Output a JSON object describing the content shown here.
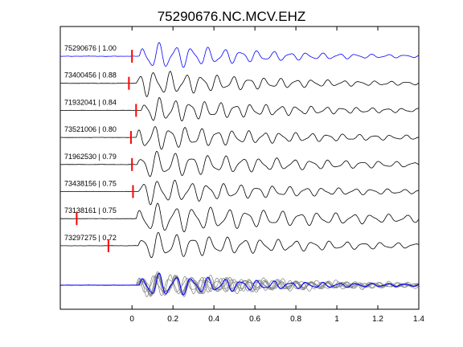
{
  "chart_data": {
    "type": "line",
    "title": "75290676.NC.MCV.EHZ",
    "xlabel": "",
    "ylabel": "",
    "xlim": [
      -0.35,
      1.4
    ],
    "xticks": [
      0,
      0.2,
      0.4,
      0.6,
      0.8,
      1,
      1.2,
      1.4
    ],
    "xtick_labels": [
      "0",
      "0.2",
      "0.4",
      "0.6",
      "0.8",
      "1",
      "1.2",
      "1.4"
    ],
    "legend": "none",
    "grid": false,
    "colors": {
      "reference": "#0000ff",
      "trace": "#000000",
      "stack": "#808080",
      "pick": "#ff0000",
      "axes": "#000000"
    },
    "series": [
      {
        "label": "75290676 | 1.00",
        "event_id": "75290676",
        "correlation": 1.0,
        "pick_time": 0.0,
        "onset": 0.035,
        "freq": 12.5,
        "amp": 0.95,
        "decay": 1.8,
        "reference": true
      },
      {
        "label": "73400456 | 0.88",
        "event_id": "73400456",
        "correlation": 0.88,
        "pick_time": -0.015,
        "onset": 0.02,
        "freq": 13.0,
        "amp": 0.9,
        "decay": 1.6
      },
      {
        "label": "71932041 | 0.84",
        "event_id": "71932041",
        "correlation": 0.84,
        "pick_time": 0.02,
        "onset": 0.045,
        "freq": 13.5,
        "amp": 0.85,
        "decay": 1.5
      },
      {
        "label": "73521006 | 0.80",
        "event_id": "73521006",
        "correlation": 0.8,
        "pick_time": -0.005,
        "onset": 0.02,
        "freq": 13.0,
        "amp": 0.85,
        "decay": 1.4
      },
      {
        "label": "71962530 | 0.79",
        "event_id": "71962530",
        "correlation": 0.79,
        "pick_time": 0.0,
        "onset": 0.025,
        "freq": 12.0,
        "amp": 0.9,
        "decay": 1.3
      },
      {
        "label": "73438156 | 0.75",
        "event_id": "73438156",
        "correlation": 0.75,
        "pick_time": 0.005,
        "onset": 0.03,
        "freq": 12.5,
        "amp": 0.85,
        "decay": 1.4
      },
      {
        "label": "73138161 | 0.75",
        "event_id": "73138161",
        "correlation": 0.75,
        "pick_time": -0.27,
        "onset": 0.02,
        "freq": 11.5,
        "amp": 1.0,
        "decay": 1.1
      },
      {
        "label": "73297275 | 0.72",
        "event_id": "73297275",
        "correlation": 0.72,
        "pick_time": -0.115,
        "onset": 0.03,
        "freq": 12.0,
        "amp": 0.9,
        "decay": 1.3
      }
    ]
  }
}
